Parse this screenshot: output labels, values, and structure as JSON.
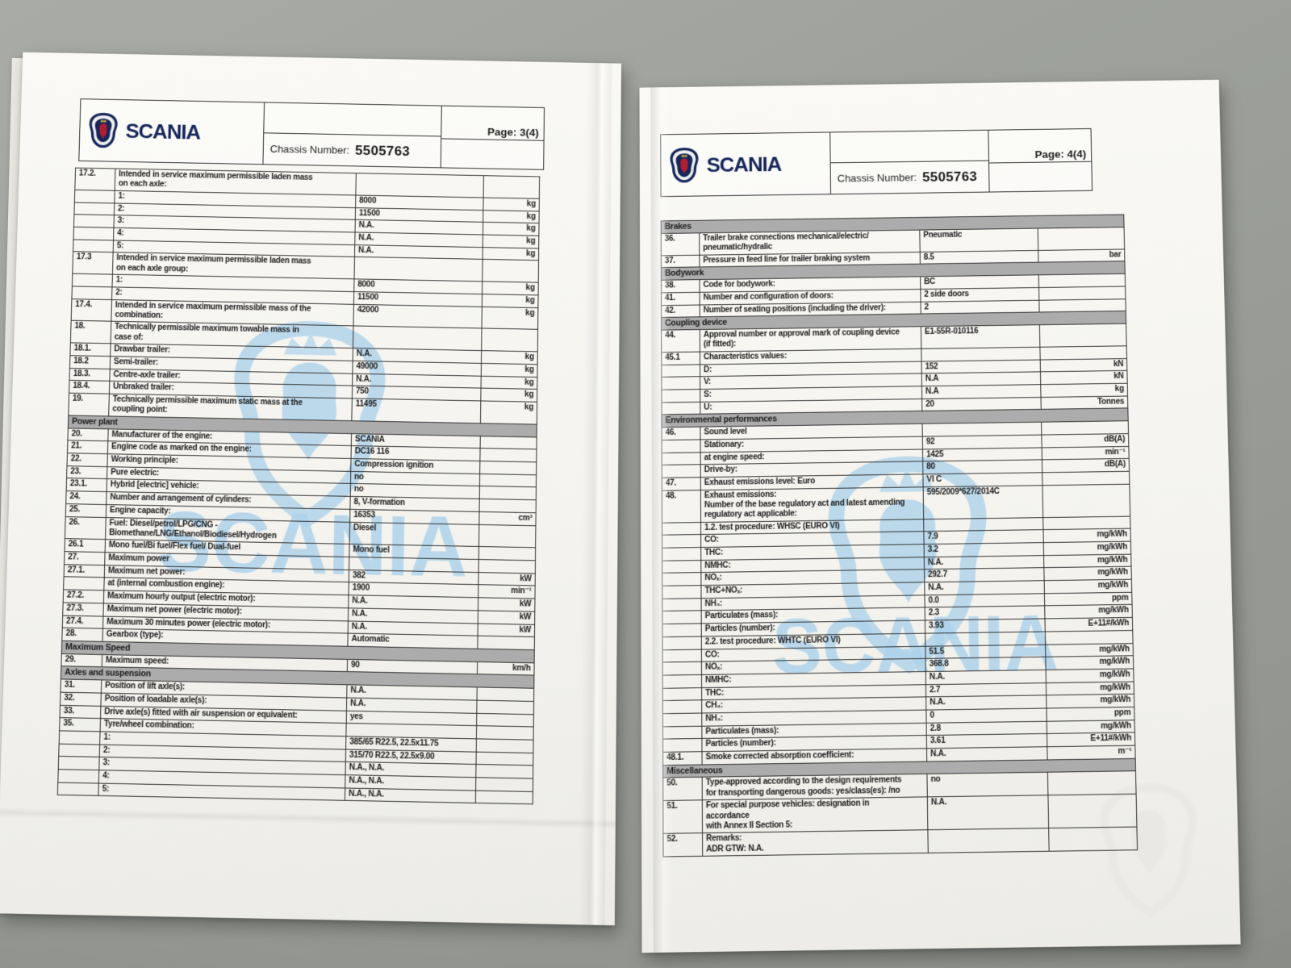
{
  "colors": {
    "background_gray": "#9da09a",
    "paper": "#f4f3ee",
    "brand_navy": "#16265a",
    "griffin_red": "#b01f2e",
    "crown_gold": "#d9b24a",
    "section_bar_gray": "#acacac",
    "watermark_blue": "#aed3eb"
  },
  "watermark": {
    "text": "SCANIA"
  },
  "left_page": {
    "brand": "SCANIA",
    "page_label": "Page: 3(4)",
    "chassis_label": "Chassis Number:",
    "chassis_number": "5505763",
    "rows": [
      {
        "num": "17.2.",
        "desc": "Intended in service maximum permissible laden mass\non each axle:"
      },
      {
        "desc": "1:",
        "val": "8000",
        "unit": "kg"
      },
      {
        "desc": "2:",
        "val": "11500",
        "unit": "kg"
      },
      {
        "desc": "3:",
        "val": "N.A.",
        "unit": "kg"
      },
      {
        "desc": "4:",
        "val": "N.A.",
        "unit": "kg"
      },
      {
        "desc": "5:",
        "val": "N.A.",
        "unit": "kg"
      },
      {
        "num": "17.3",
        "desc": "Intended in service maximum permissible laden mass\non each axle group:"
      },
      {
        "desc": "1:",
        "val": "8000",
        "unit": "kg"
      },
      {
        "desc": "2:",
        "val": "11500",
        "unit": "kg"
      },
      {
        "num": "17.4.",
        "desc": "Intended in service maximum permissible mass of the\ncombination:",
        "val": "42000",
        "unit": "kg"
      },
      {
        "num": "18.",
        "desc": "Technically permissible maximum towable mass in\ncase of:"
      },
      {
        "num": "18.1.",
        "desc": "Drawbar trailer:",
        "val": "N.A.",
        "unit": "kg"
      },
      {
        "num": "18.2",
        "desc": "Semi-trailer:",
        "val": "49000",
        "unit": "kg"
      },
      {
        "num": "18.3.",
        "desc": "Centre-axle trailer:",
        "val": "N.A.",
        "unit": "kg"
      },
      {
        "num": "18.4.",
        "desc": "Unbraked trailer:",
        "val": "750",
        "unit": "kg"
      },
      {
        "num": "19.",
        "desc": "Technically permissible maximum static mass at the\ncoupling point:",
        "val": "11495",
        "unit": "kg"
      },
      {
        "section": "Power plant"
      },
      {
        "num": "20.",
        "desc": "Manufacturer of the engine:",
        "val": "SCANIA"
      },
      {
        "num": "21.",
        "desc": "Engine code as marked on the engine:",
        "val": "DC16 116"
      },
      {
        "num": "22.",
        "desc": "Working principle:",
        "val": "Compression ignition"
      },
      {
        "num": "23.",
        "desc": "Pure electric:",
        "val": "no"
      },
      {
        "num": "23.1.",
        "desc": "Hybrid [electric] vehicle:",
        "val": "no"
      },
      {
        "num": "24.",
        "desc": "Number and arrangement of cylinders:",
        "val": "8, V-formation"
      },
      {
        "num": "25.",
        "desc": "Engine capacity:",
        "val": "16353",
        "unit": "cm³"
      },
      {
        "num": "26.",
        "desc": "Fuel: Diesel/petrol/LPG/CNG -\nBiomethane/LNG/Ethanol/Biodiesel/Hydrogen",
        "val": "Diesel"
      },
      {
        "num": "26.1",
        "desc": "Mono fuel/Bi fuel/Flex fuel/ Dual-fuel",
        "val": "Mono fuel"
      },
      {
        "num": "27.",
        "desc": "Maximum power"
      },
      {
        "num": "27.1.",
        "desc": "Maximum net power:",
        "val": "382",
        "unit": "kW"
      },
      {
        "desc": "at (internal combustion engine):",
        "val": "1900",
        "unit": "min⁻¹"
      },
      {
        "num": "27.2.",
        "desc": "Maximum hourly output (electric motor):",
        "val": "N.A.",
        "unit": "kW"
      },
      {
        "num": "27.3.",
        "desc": "Maximum net power (electric motor):",
        "val": "N.A.",
        "unit": "kW"
      },
      {
        "num": "27.4.",
        "desc": "Maximum 30 minutes power (electric motor):",
        "val": "N.A.",
        "unit": "kW"
      },
      {
        "num": "28.",
        "desc": "Gearbox (type):",
        "val": "Automatic"
      },
      {
        "section": "Maximum Speed"
      },
      {
        "num": "29.",
        "desc": "Maximum speed:",
        "val": "90",
        "unit": "km/h"
      },
      {
        "section": "Axles and suspension"
      },
      {
        "num": "31.",
        "desc": "Position of lift axle(s):",
        "val": "N.A."
      },
      {
        "num": "32.",
        "desc": "Position of loadable axle(s):",
        "val": "N.A."
      },
      {
        "num": "33.",
        "desc": "Drive axle(s) fitted with air suspension or equivalent:",
        "val": "yes"
      },
      {
        "num": "35.",
        "desc": "Tyre/wheel combination:"
      },
      {
        "desc": "1:",
        "val": "385/65 R22.5, 22.5x11.75"
      },
      {
        "desc": "2:",
        "val": "315/70 R22.5, 22.5x9.00"
      },
      {
        "desc": "3:",
        "val": "N.A., N.A."
      },
      {
        "desc": "4:",
        "val": "N.A., N.A."
      },
      {
        "desc": "5:",
        "val": "N.A., N.A."
      }
    ]
  },
  "right_page": {
    "brand": "SCANIA",
    "page_label": "Page: 4(4)",
    "chassis_label": "Chassis Number:",
    "chassis_number": "5505763",
    "rows": [
      {
        "section": "Brakes"
      },
      {
        "num": "36.",
        "desc": "Trailer brake connections mechanical/electric/\npneumatic/hydralic",
        "val": "Pneumatic"
      },
      {
        "num": "37.",
        "desc": "Pressure in feed line for trailer braking system",
        "val": "8.5",
        "unit": "bar"
      },
      {
        "section": "Bodywork"
      },
      {
        "num": "38.",
        "desc": "Code for bodywork:",
        "val": "BC"
      },
      {
        "num": "41.",
        "desc": "Number and configuration of doors:",
        "val": "2 side doors"
      },
      {
        "num": "42.",
        "desc": "Number of seating positions (including the driver):",
        "val": "2"
      },
      {
        "section": "Coupling device"
      },
      {
        "num": "44.",
        "desc": "Approval number or approval mark of coupling device\n(if fitted):",
        "val": "E1-55R-010116"
      },
      {
        "num": "45.1",
        "desc": "Characteristics values:"
      },
      {
        "desc": "D:",
        "val": "152",
        "unit": "kN"
      },
      {
        "desc": "V:",
        "val": "N.A",
        "unit": "kN"
      },
      {
        "desc": "S:",
        "val": "N.A",
        "unit": "kg"
      },
      {
        "desc": "U:",
        "val": "20",
        "unit": "Tonnes"
      },
      {
        "section": "Environmental performances"
      },
      {
        "num": "46.",
        "desc": "Sound level"
      },
      {
        "desc": "Stationary:",
        "val": "92",
        "unit": "dB(A)"
      },
      {
        "desc": "at engine speed:",
        "val": "1425",
        "unit": "min⁻¹"
      },
      {
        "desc": "Drive-by:",
        "val": "80",
        "unit": "dB(A)"
      },
      {
        "num": "47.",
        "desc": "Exhaust emissions level: Euro",
        "val": "VI C"
      },
      {
        "num": "48.",
        "desc": "Exhaust emissions:\nNumber of the base regulatory act and latest amending\nregulatory act applicable:",
        "val": "595/2009*627/2014C"
      },
      {
        "desc": "1.2. test procedure: WHSC (EURO VI)"
      },
      {
        "desc": "CO:",
        "val": "7.9",
        "unit": "mg/kWh"
      },
      {
        "desc": "THC:",
        "val": "3.2",
        "unit": "mg/kWh"
      },
      {
        "desc": "NMHC:",
        "val": "N.A.",
        "unit": "mg/kWh"
      },
      {
        "desc": "NOₓ:",
        "val": "292.7",
        "unit": "mg/kWh"
      },
      {
        "desc": "THC+NOₓ:",
        "val": "N.A.",
        "unit": "mg/kWh"
      },
      {
        "desc": "NH₃:",
        "val": "0.0",
        "unit": "ppm"
      },
      {
        "desc": "Particulates (mass):",
        "val": "2.3",
        "unit": "mg/kWh"
      },
      {
        "desc": "Particles (number):",
        "val": "3.93",
        "unit": "E+11#/kWh"
      },
      {
        "desc": "2.2. test procedure: WHTC (EURO VI)"
      },
      {
        "desc": "CO:",
        "val": "51.5",
        "unit": "mg/kWh"
      },
      {
        "desc": "NOₓ:",
        "val": "368.8",
        "unit": "mg/kWh"
      },
      {
        "desc": "NMHC:",
        "val": "N.A.",
        "unit": "mg/kWh"
      },
      {
        "desc": "THC:",
        "val": "2.7",
        "unit": "mg/kWh"
      },
      {
        "desc": "CH₄:",
        "val": "N.A.",
        "unit": "mg/kWh"
      },
      {
        "desc": "NH₃:",
        "val": "0",
        "unit": "ppm"
      },
      {
        "desc": "Particulates (mass):",
        "val": "2.8",
        "unit": "mg/kWh"
      },
      {
        "desc": "Particles (number):",
        "val": "3.61",
        "unit": "E+11#/kWh"
      },
      {
        "num": "48.1.",
        "desc": "Smoke corrected absorption coefficient:",
        "val": "N.A.",
        "unit": "m⁻¹"
      },
      {
        "section": "Miscellaneous"
      },
      {
        "num": "50.",
        "desc": "Type-approved according to the design requirements\nfor transporting dangerous goods: yes/class(es): /no",
        "val": "no"
      },
      {
        "num": "51.",
        "desc": "For special purpose vehicles: designation in\naccordance\nwith Annex II Section 5:",
        "val": "N.A."
      },
      {
        "num": "52.",
        "desc": "Remarks:\nADR GTW: N.A."
      }
    ]
  }
}
